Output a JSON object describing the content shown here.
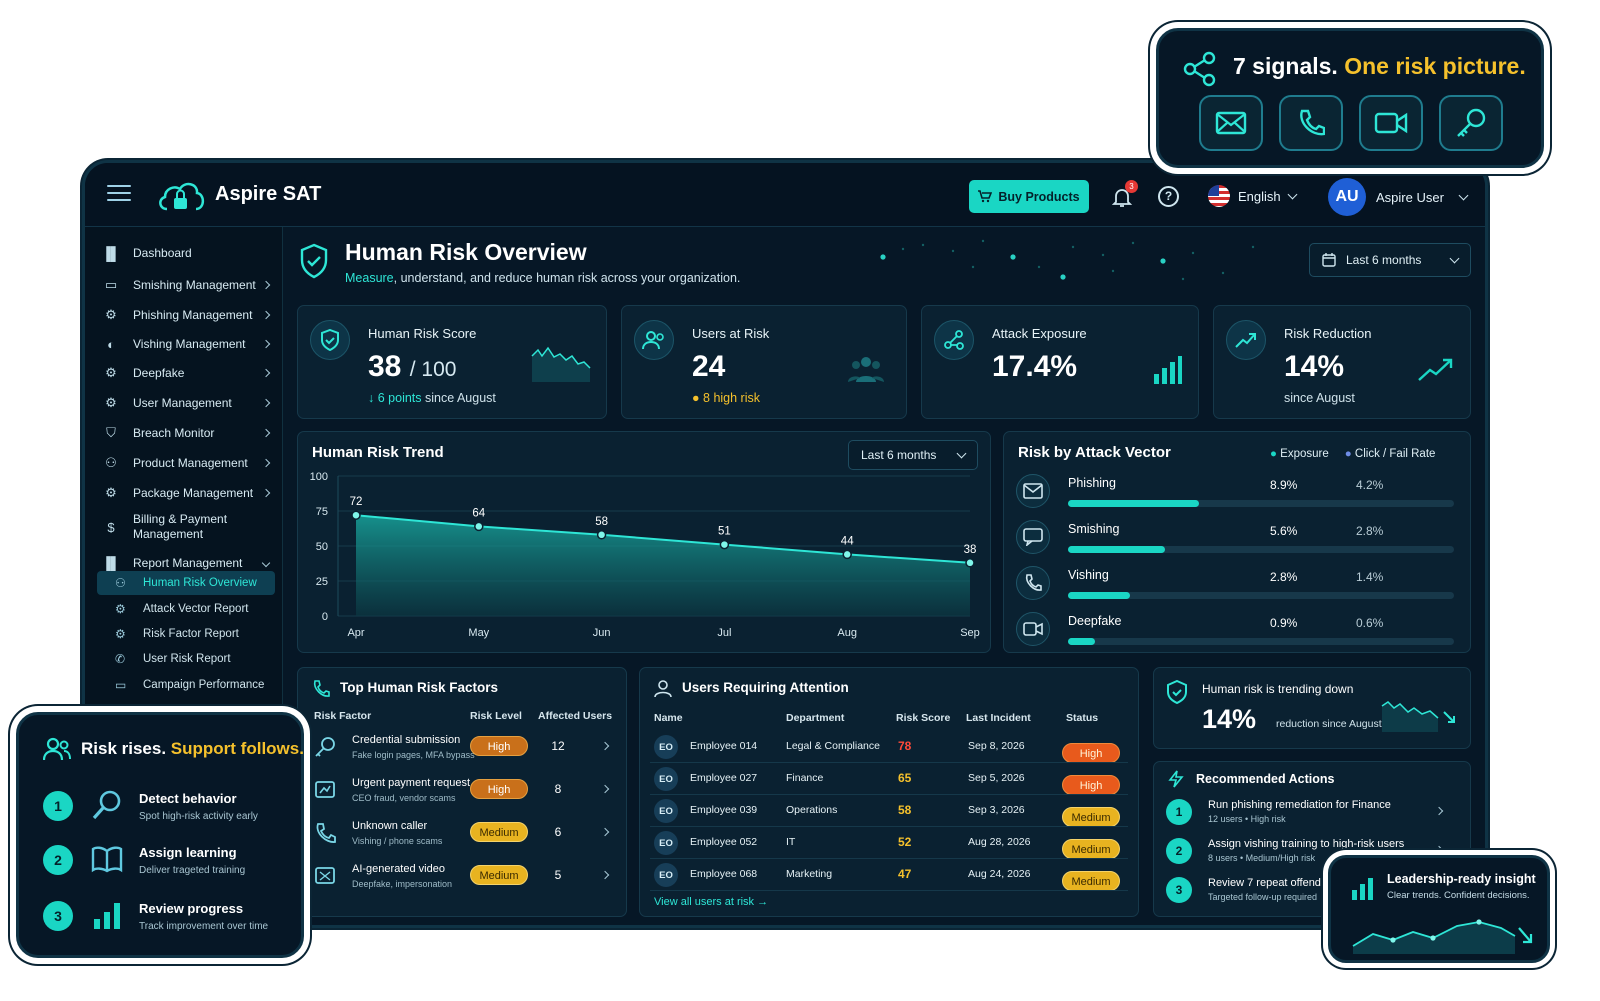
{
  "app": {
    "brand": "Aspire SAT"
  },
  "header": {
    "buy_label": "Buy Products",
    "notif_count": "3",
    "help_label": "?",
    "language": "English",
    "user_initials": "AU",
    "user_name": "Aspire User"
  },
  "sidebar": {
    "items": [
      {
        "label": "Dashboard",
        "icon": "bar-chart-icon"
      },
      {
        "label": "Smishing Management",
        "icon": "sms-icon"
      },
      {
        "label": "Phishing Management",
        "icon": "gear-icon"
      },
      {
        "label": "Vishing Management",
        "icon": "phone-icon"
      },
      {
        "label": "Deepfake",
        "icon": "gear-icon"
      },
      {
        "label": "User Management",
        "icon": "gear-icon"
      },
      {
        "label": "Breach Monitor",
        "icon": "shield-icon"
      },
      {
        "label": "Product Management",
        "icon": "users-icon"
      },
      {
        "label": "Package Management",
        "icon": "gear-icon"
      },
      {
        "label": "Billing & Payment Management",
        "icon": "dollar-icon"
      },
      {
        "label": "Report Management",
        "icon": "bar-chart-icon"
      }
    ],
    "sub_items": [
      {
        "label": "Human Risk Overview",
        "icon": "users-icon"
      },
      {
        "label": "Attack Vector Report",
        "icon": "gear-icon"
      },
      {
        "label": "Risk Factor Report",
        "icon": "gear-icon"
      },
      {
        "label": "User Risk Report",
        "icon": "phone-icon"
      },
      {
        "label": "Campaign Performance",
        "icon": "chart-icon"
      }
    ]
  },
  "page": {
    "title": "Human Risk Overview",
    "subtitle_highlight": "Measure",
    "subtitle_rest": ", understand, and reduce human risk across your organization.",
    "range": "Last 6 months"
  },
  "kpis": {
    "score": {
      "label": "Human Risk Score",
      "value": "38",
      "max": "/ 100",
      "delta": "6 points",
      "delta_rest": "since August"
    },
    "users": {
      "label": "Users at Risk",
      "value": "24",
      "note": "8 high risk"
    },
    "exposure": {
      "label": "Attack Exposure",
      "value": "17.4%"
    },
    "reduction": {
      "label": "Risk Reduction",
      "value": "14%",
      "note": "since August"
    }
  },
  "trend": {
    "title": "Human Risk Trend",
    "range": "Last 6 months",
    "chart_data": {
      "type": "area",
      "categories": [
        "Apr",
        "May",
        "Jun",
        "Jul",
        "Aug",
        "Sep"
      ],
      "values": [
        72,
        64,
        58,
        51,
        44,
        38
      ],
      "ylim": [
        0,
        100
      ],
      "yticks": [
        "100",
        "75",
        "50",
        "25",
        "0"
      ],
      "ytick_values": [
        100,
        75,
        50,
        25,
        0
      ]
    }
  },
  "vectors": {
    "title": "Risk by Attack Vector",
    "legend": [
      "Exposure",
      "Click / Fail Rate"
    ],
    "rows": [
      {
        "name": "Phishing",
        "exposure": "8.9%",
        "rate": "4.2%",
        "fill": 0.34,
        "icon": "mail-icon"
      },
      {
        "name": "Smishing",
        "exposure": "5.6%",
        "rate": "2.8%",
        "fill": 0.25,
        "icon": "sms-icon"
      },
      {
        "name": "Vishing",
        "exposure": "2.8%",
        "rate": "1.4%",
        "fill": 0.16,
        "icon": "phone-icon"
      },
      {
        "name": "Deepfake",
        "exposure": "0.9%",
        "rate": "0.6%",
        "fill": 0.07,
        "icon": "video-icon"
      }
    ]
  },
  "factors": {
    "title": "Top Human Risk Factors",
    "headers": [
      "Risk Factor",
      "Risk Level",
      "Affected Users"
    ],
    "rows": [
      {
        "name": "Credential submission",
        "desc": "Fake login pages, MFA bypass",
        "level": "High",
        "users": "12"
      },
      {
        "name": "Urgent payment request",
        "desc": "CEO fraud, vendor scams",
        "level": "High",
        "users": "8"
      },
      {
        "name": "Unknown caller",
        "desc": "Vishing / phone scams",
        "level": "Medium",
        "users": "6"
      },
      {
        "name": "AI-generated video",
        "desc": "Deepfake, impersonation",
        "level": "Medium",
        "users": "5"
      }
    ]
  },
  "attention": {
    "title": "Users Requiring Attention",
    "headers": [
      "Name",
      "Department",
      "Risk Score",
      "Last Incident",
      "Status"
    ],
    "rows": [
      {
        "init": "EO",
        "name": "Employee 014",
        "dept": "Legal & Compliance",
        "score": "78",
        "date": "Sep 8, 2026",
        "status": "High"
      },
      {
        "init": "EO",
        "name": "Employee 027",
        "dept": "Finance",
        "score": "65",
        "date": "Sep 5, 2026",
        "status": "High"
      },
      {
        "init": "EO",
        "name": "Employee 039",
        "dept": "Operations",
        "score": "58",
        "date": "Sep 3, 2026",
        "status": "Medium"
      },
      {
        "init": "EO",
        "name": "Employee 052",
        "dept": "IT",
        "score": "52",
        "date": "Aug 28, 2026",
        "status": "Medium"
      },
      {
        "init": "EO",
        "name": "Employee 068",
        "dept": "Marketing",
        "score": "47",
        "date": "Aug 24, 2026",
        "status": "Medium"
      }
    ],
    "link": "View all users at risk"
  },
  "trending": {
    "title": "Human risk is trending down",
    "value": "14%",
    "note": "reduction since August"
  },
  "actions": {
    "title": "Recommended Actions",
    "rows": [
      {
        "num": "1",
        "text": "Run phishing remediation for Finance",
        "sub": "12 users • High risk"
      },
      {
        "num": "2",
        "text": "Assign vishing training to high-risk users",
        "sub": "8 users • Medium/High risk"
      },
      {
        "num": "3",
        "text": "Review 7 repeat offenders",
        "sub": "Targeted follow-up required"
      }
    ]
  },
  "signals": {
    "title_a": "7 signals.",
    "title_b": "One risk picture.",
    "icons": [
      "mail-icon",
      "phone-icon",
      "video-icon",
      "key-icon"
    ]
  },
  "support": {
    "title_a": "Risk rises.",
    "title_b": "Support follows.",
    "steps": [
      {
        "num": "1",
        "title": "Detect behavior",
        "sub": "Spot high-risk activity early"
      },
      {
        "num": "2",
        "title": "Assign learning",
        "sub": "Deliver trageted training"
      },
      {
        "num": "3",
        "title": "Review progress",
        "sub": "Track improvement over time"
      }
    ]
  },
  "leadership": {
    "title": "Leadership-ready insight",
    "sub": "Clear trends. Confident decisions."
  },
  "colors": {
    "accent": "#1ad6c4",
    "bg": "#061726",
    "amber": "#f5c12c",
    "high": "#e85a1c",
    "medium": "#e8b320"
  }
}
